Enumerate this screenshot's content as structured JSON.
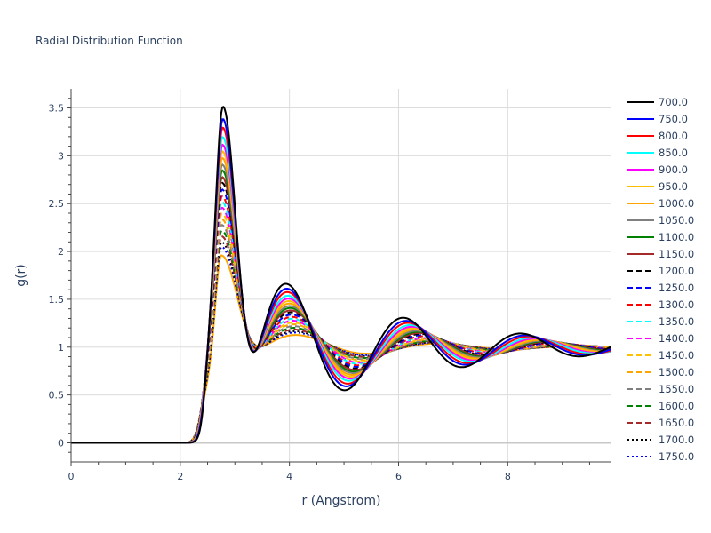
{
  "chart_data": {
    "type": "line",
    "title": "Radial Distribution Function",
    "xlabel": "r (Angstrom)",
    "ylabel": "g(r)",
    "xlim": [
      0,
      9.9
    ],
    "ylim": [
      -0.2,
      3.7
    ],
    "x_ticks": [
      0,
      2,
      4,
      6,
      8
    ],
    "x_tick_labels": [
      "0",
      "2",
      "4",
      "6",
      "8"
    ],
    "y_ticks": [
      0,
      0.5,
      1,
      1.5,
      2,
      2.5,
      3,
      3.5
    ],
    "y_tick_labels": [
      "0",
      "0.5",
      "1",
      "1.5",
      "2",
      "2.5",
      "3",
      "3.5"
    ],
    "grid": true,
    "legend_position": "right",
    "series": [
      {
        "name": "700.0",
        "color": "#000000",
        "dash": "solid",
        "peak": 3.52
      },
      {
        "name": "750.0",
        "color": "#0000ff",
        "dash": "solid",
        "peak": 3.39
      },
      {
        "name": "800.0",
        "color": "#ff0000",
        "dash": "solid",
        "peak": 3.3
      },
      {
        "name": "850.0",
        "color": "#00ffff",
        "dash": "solid",
        "peak": 3.2
      },
      {
        "name": "900.0",
        "color": "#ff00ff",
        "dash": "solid",
        "peak": 3.12
      },
      {
        "name": "950.0",
        "color": "#ffc000",
        "dash": "solid",
        "peak": 3.05
      },
      {
        "name": "1000.0",
        "color": "#ffa500",
        "dash": "solid",
        "peak": 2.98
      },
      {
        "name": "1050.0",
        "color": "#808080",
        "dash": "solid",
        "peak": 2.91
      },
      {
        "name": "1100.0",
        "color": "#008000",
        "dash": "solid",
        "peak": 2.85
      },
      {
        "name": "1150.0",
        "color": "#a52a2a",
        "dash": "solid",
        "peak": 2.78
      },
      {
        "name": "1200.0",
        "color": "#000000",
        "dash": "dash",
        "peak": 2.72
      },
      {
        "name": "1250.0",
        "color": "#0000ff",
        "dash": "dash",
        "peak": 2.65
      },
      {
        "name": "1300.0",
        "color": "#ff0000",
        "dash": "dash",
        "peak": 2.58
      },
      {
        "name": "1350.0",
        "color": "#00ffff",
        "dash": "dash",
        "peak": 2.52
      },
      {
        "name": "1400.0",
        "color": "#ff00ff",
        "dash": "dash",
        "peak": 2.46
      },
      {
        "name": "1450.0",
        "color": "#ffc000",
        "dash": "dash",
        "peak": 2.4
      },
      {
        "name": "1500.0",
        "color": "#ffa500",
        "dash": "dash",
        "peak": 2.34
      },
      {
        "name": "1550.0",
        "color": "#808080",
        "dash": "dash",
        "peak": 2.28
      },
      {
        "name": "1600.0",
        "color": "#008000",
        "dash": "dash",
        "peak": 2.22
      },
      {
        "name": "1650.0",
        "color": "#a52a2a",
        "dash": "dash",
        "peak": 2.16
      },
      {
        "name": "1700.0",
        "color": "#000000",
        "dash": "dot",
        "peak": 2.1
      },
      {
        "name": "1750.0",
        "color": "#0000ff",
        "dash": "dot",
        "peak": 2.05
      },
      {
        "name": "",
        "color": "#ffa500",
        "dash": "solid",
        "peak": 1.96,
        "unlisted": true
      }
    ]
  }
}
